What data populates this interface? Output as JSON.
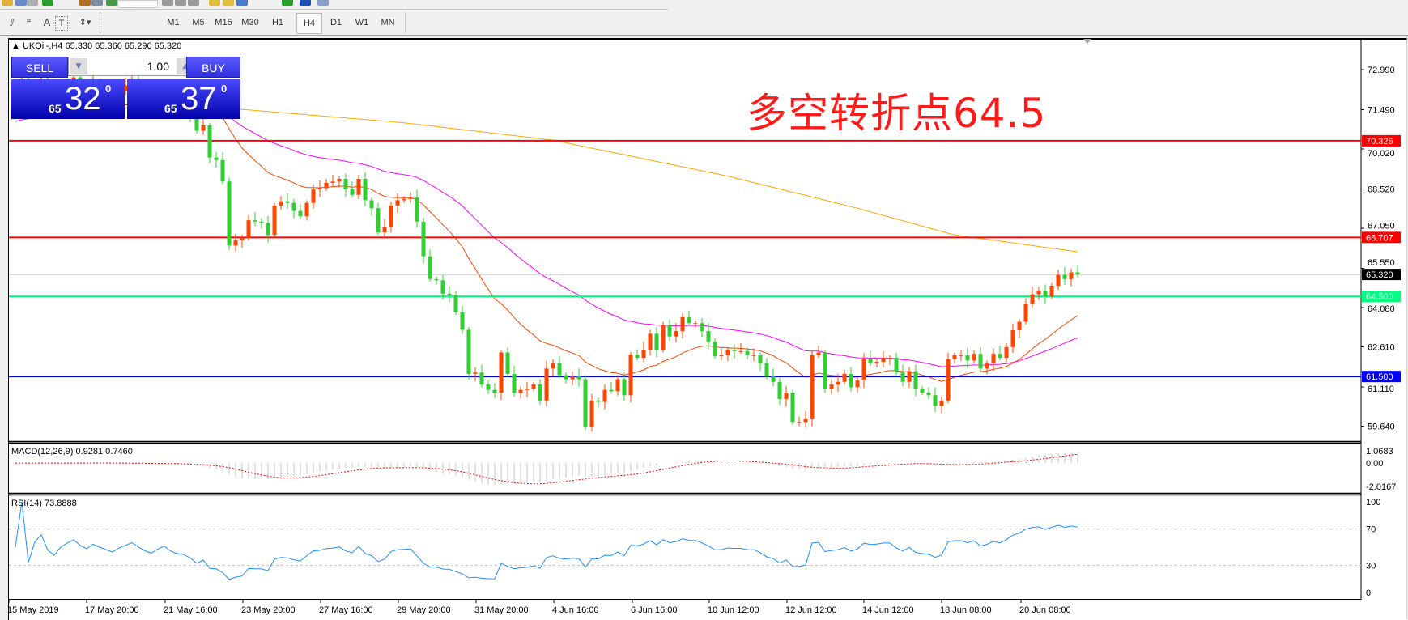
{
  "toolbar": {
    "timeframes": [
      "M1",
      "M5",
      "M15",
      "M30",
      "H1",
      "H4",
      "D1",
      "W1",
      "MN"
    ],
    "active_timeframe": "H4",
    "tools": [
      "elliott-wave-icon",
      "fibonacci-icon",
      "text-icon",
      "text-label-icon",
      "arrows-icon"
    ],
    "text_tool": "A",
    "text_label_tool": "T"
  },
  "chart": {
    "symbol_header": "UKOil-,H4  65.330 65.360 65.290 65.320",
    "annotation": "多空转折点64.5",
    "colors": {
      "up": "#ff4500",
      "down": "#32cd32",
      "ma_fast": "#ff4500",
      "ma_mid": "#ff00ff",
      "ma_slow": "#ffa500",
      "macd_hist": "#c0c0c0",
      "macd_signal": "#ff0000",
      "rsi": "#1e90ff"
    }
  },
  "trade_panel": {
    "sell_label": "SELL",
    "buy_label": "BUY",
    "lots": "1.00",
    "sell_price": {
      "prefix": "65",
      "big": "32",
      "sup": "0"
    },
    "buy_price": {
      "prefix": "65",
      "big": "37",
      "sup": "0"
    }
  },
  "price_axis": {
    "ticks": [
      "72.990",
      "71.490",
      "70.020",
      "68.520",
      "67.050",
      "65.550",
      "64.080",
      "62.610",
      "61.110",
      "59.640"
    ],
    "levels": [
      {
        "label": "70.326",
        "value": 70.326,
        "color": "#ff0000",
        "text_color": "#ffffff"
      },
      {
        "label": "66.707",
        "value": 66.707,
        "color": "#ff0000",
        "text_color": "#ffffff"
      },
      {
        "label": "65.320",
        "value": 65.32,
        "color": "#c0c0c0",
        "box": "#000000",
        "text_color": "#ffffff"
      },
      {
        "label": "64.500",
        "value": 64.5,
        "color": "#00ff7f",
        "text_color": "#ffffff"
      },
      {
        "label": "61.500",
        "value": 61.5,
        "color": "#0000ff",
        "text_color": "#ffffff"
      }
    ]
  },
  "macd": {
    "label": "MACD(12,26,9) 0.9281 0.7460",
    "ticks": [
      "1.0683",
      "0.00",
      "-2.0167"
    ]
  },
  "rsi": {
    "label": "RSI(14) 73.8888",
    "ticks": [
      "100",
      "70",
      "30",
      "0"
    ]
  },
  "time_axis": {
    "labels": [
      "15 May 2019",
      "17 May 20:00",
      "21 May 16:00",
      "23 May 20:00",
      "27 May 16:00",
      "29 May 20:00",
      "31 May 20:00",
      "4 Jun 16:00",
      "6 Jun 16:00",
      "10 Jun 12:00",
      "12 Jun 12:00",
      "14 Jun 12:00",
      "18 Jun 08:00",
      "20 Jun 08:00"
    ]
  },
  "chart_data": {
    "type": "candlestick",
    "ylim": [
      59.0,
      74.0
    ],
    "closes": [
      72.3,
      72.5,
      72.1,
      72.4,
      72.6,
      72.2,
      72.0,
      72.3,
      72.5,
      72.7,
      72.4,
      72.2,
      72.5,
      72.3,
      72.1,
      71.9,
      72.2,
      72.4,
      72.6,
      72.3,
      72.0,
      71.8,
      72.1,
      72.3,
      71.9,
      71.7,
      71.6,
      71.3,
      70.7,
      70.9,
      69.7,
      69.6,
      68.8,
      66.4,
      66.6,
      66.7,
      67.35,
      67.3,
      67.25,
      66.8,
      67.9,
      68.06,
      68.0,
      67.7,
      67.5,
      68.0,
      68.5,
      68.55,
      68.75,
      68.8,
      68.9,
      68.5,
      68.3,
      68.9,
      68.1,
      67.8,
      66.9,
      67.1,
      67.9,
      68.1,
      68.15,
      68.2,
      67.3,
      66.0,
      65.15,
      65.1,
      64.6,
      64.55,
      63.9,
      63.25,
      61.6,
      61.65,
      61.2,
      61.0,
      60.9,
      62.4,
      61.6,
      60.9,
      61.0,
      61.05,
      61.2,
      60.6,
      61.8,
      62.0,
      61.55,
      61.4,
      61.5,
      61.4,
      59.6,
      60.6,
      60.55,
      61.0,
      60.95,
      61.4,
      60.8,
      62.32,
      62.2,
      62.5,
      63.1,
      62.5,
      63.44,
      63.0,
      63.2,
      63.72,
      63.5,
      63.5,
      63.2,
      62.8,
      62.26,
      62.3,
      62.5,
      62.45,
      62.45,
      62.3,
      62.3,
      62.0,
      61.5,
      61.3,
      60.66,
      60.9,
      59.8,
      59.8,
      59.9,
      62.3,
      62.4,
      61.05,
      61.2,
      61.3,
      61.6,
      61.1,
      61.35,
      62.17,
      62.0,
      62.05,
      62.2,
      62.2,
      61.65,
      61.3,
      61.7,
      61.05,
      60.9,
      60.8,
      60.4,
      60.6,
      62.15,
      62.3,
      62.3,
      62.1,
      62.35,
      61.8,
      62.0,
      62.35,
      62.2,
      62.6,
      63.23,
      63.55,
      64.23,
      64.58,
      64.7,
      64.5,
      64.9,
      65.3,
      65.15,
      65.4,
      65.32
    ],
    "ma_slow": [
      [
        0,
        71.9
      ],
      [
        20,
        71.65
      ],
      [
        35,
        71.5
      ],
      [
        60,
        71.0
      ],
      [
        83,
        70.35
      ],
      [
        110,
        69.0
      ],
      [
        130,
        67.8
      ],
      [
        145,
        66.8
      ],
      [
        164,
        66.17
      ]
    ],
    "rsi_levels": [
      70,
      30
    ],
    "rsi_range": [
      0,
      100
    ],
    "macd_range": [
      -2.0167,
      1.0683
    ]
  }
}
